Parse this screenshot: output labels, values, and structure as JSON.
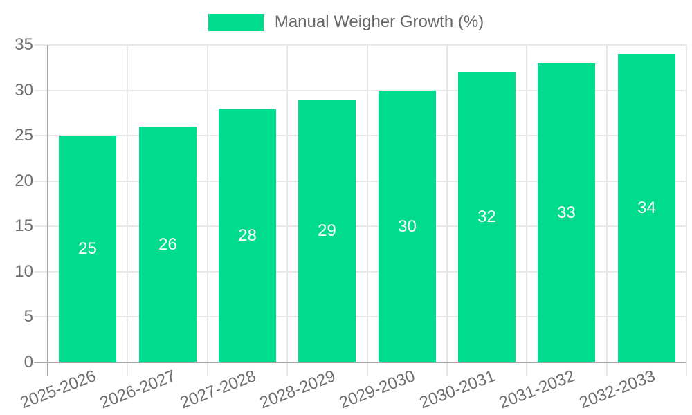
{
  "chart_data": {
    "type": "bar",
    "title": "",
    "legend": {
      "position": "top",
      "label": "Manual Weigher Growth (%)"
    },
    "categories": [
      "2025-2026",
      "2026-2027",
      "2027-2028",
      "2028-2029",
      "2029-2030",
      "2030-2031",
      "2031-2032",
      "2032-2033"
    ],
    "series": [
      {
        "name": "Manual Weigher Growth (%)",
        "values": [
          25,
          26,
          28,
          29,
          30,
          32,
          33,
          34
        ]
      }
    ],
    "value_labels": [
      25,
      26,
      28,
      29,
      30,
      32,
      33,
      34
    ],
    "ylim": [
      0,
      35
    ],
    "yticks": [
      0,
      5,
      10,
      15,
      20,
      25,
      30,
      35
    ],
    "grid": true,
    "x_label_rotation_deg": -21,
    "colors": {
      "bar": "#00DC8E",
      "value_label": "#FFFFFF",
      "grid": "#E8E8E8",
      "axis": "#A6A6A6",
      "tick_label": "#6E6E6E",
      "legend_label": "#666666",
      "background": "#FFFFFF"
    }
  }
}
